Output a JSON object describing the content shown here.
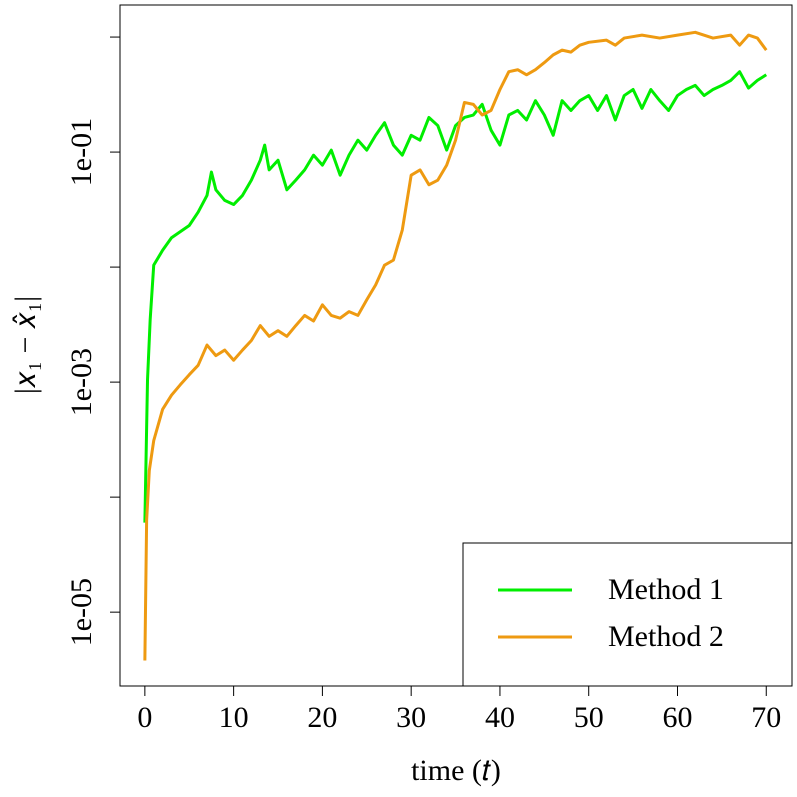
{
  "chart_data": {
    "type": "line",
    "xlabel": "time (𝑡)",
    "ylabel": "|𝑥₁ − 𝑥̂₁|",
    "xlim": [
      -2.8,
      72.9
    ],
    "xticks": [
      0,
      10,
      20,
      30,
      40,
      50,
      60,
      70
    ],
    "ylim": [
      2.28e-06,
      1.9
    ],
    "ylog": true,
    "yticks": [
      {
        "value": 0.1,
        "label": "1e-01"
      },
      {
        "value": 0.001,
        "label": "1e-03"
      },
      {
        "value": 1e-05,
        "label": "1e-05"
      }
    ],
    "yminorticks": [
      1,
      0.01,
      0.0001
    ],
    "legend": "bottom-right",
    "series": [
      {
        "name": "Method 1",
        "color": "#00ee00",
        "x": [
          0,
          0.3,
          0.6,
          1,
          2,
          3,
          5,
          6,
          7,
          7.5,
          8,
          9,
          10,
          11,
          12,
          13,
          13.5,
          14,
          15,
          16,
          17,
          18,
          19,
          20,
          21,
          22,
          23,
          24,
          25,
          26,
          27,
          28,
          29,
          30,
          31,
          32,
          33,
          34,
          35,
          36,
          37,
          38,
          39,
          40,
          41,
          42,
          43,
          44,
          45,
          46,
          47,
          48,
          49,
          50,
          51,
          52,
          53,
          54,
          55,
          56,
          57,
          58,
          59,
          60,
          61,
          62,
          63,
          64,
          65,
          66,
          67,
          68,
          69,
          70
        ],
        "values": [
          6e-05,
          0.00105,
          0.0035,
          0.0104,
          0.014,
          0.018,
          0.023,
          0.03,
          0.042,
          0.067,
          0.047,
          0.038,
          0.035,
          0.042,
          0.057,
          0.085,
          0.115,
          0.07,
          0.085,
          0.047,
          0.057,
          0.07,
          0.094,
          0.077,
          0.104,
          0.063,
          0.094,
          0.127,
          0.104,
          0.14,
          0.18,
          0.115,
          0.094,
          0.14,
          0.127,
          0.2,
          0.17,
          0.104,
          0.17,
          0.2,
          0.21,
          0.26,
          0.155,
          0.115,
          0.21,
          0.23,
          0.19,
          0.28,
          0.21,
          0.14,
          0.28,
          0.23,
          0.28,
          0.31,
          0.23,
          0.31,
          0.19,
          0.31,
          0.35,
          0.24,
          0.35,
          0.28,
          0.23,
          0.31,
          0.35,
          0.38,
          0.31,
          0.35,
          0.38,
          0.42,
          0.5,
          0.36,
          0.42,
          0.47
        ]
      },
      {
        "name": "Method 2",
        "color": "#ee9a11",
        "x": [
          0,
          0.2,
          0.5,
          1,
          2,
          3,
          4,
          5,
          6,
          7,
          8,
          9,
          10,
          11,
          12,
          13,
          14,
          15,
          16,
          17,
          18,
          19,
          20,
          21,
          22,
          23,
          24,
          25,
          26,
          27,
          28,
          29,
          30,
          31,
          32,
          33,
          34,
          35,
          36,
          37,
          38,
          39,
          40,
          41,
          42,
          43,
          44,
          45,
          46,
          47,
          48,
          49,
          50,
          52,
          53,
          54,
          56,
          58,
          60,
          62,
          64,
          66,
          67,
          68,
          69,
          70
        ],
        "values": [
          3.8e-06,
          6.3e-05,
          0.00017,
          0.00031,
          0.00058,
          0.00077,
          0.00095,
          0.00116,
          0.0014,
          0.0021,
          0.0017,
          0.0019,
          0.00155,
          0.0019,
          0.0023,
          0.0031,
          0.0025,
          0.0028,
          0.0025,
          0.0031,
          0.0038,
          0.0034,
          0.0047,
          0.0038,
          0.0036,
          0.0041,
          0.0038,
          0.0052,
          0.007,
          0.0104,
          0.0115,
          0.021,
          0.063,
          0.07,
          0.052,
          0.057,
          0.077,
          0.127,
          0.27,
          0.26,
          0.21,
          0.23,
          0.35,
          0.5,
          0.52,
          0.47,
          0.52,
          0.6,
          0.7,
          0.77,
          0.74,
          0.85,
          0.9,
          0.94,
          0.85,
          0.98,
          1.04,
          0.98,
          1.04,
          1.1,
          0.98,
          1.04,
          0.85,
          1.04,
          0.98,
          0.77
        ]
      }
    ]
  }
}
